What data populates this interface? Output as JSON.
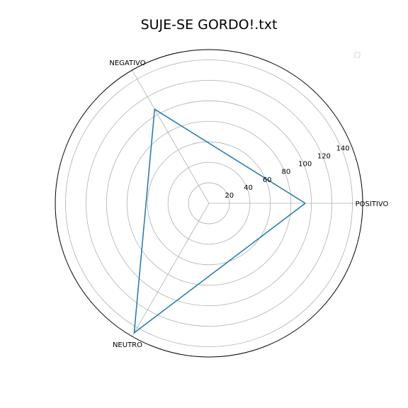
{
  "chart_data": {
    "type": "radar",
    "title": "SUJE-SE GORDO!.txt",
    "categories": [
      "POSITIVO",
      "NEGATIVO",
      "NEUTRO"
    ],
    "series": [
      {
        "values": [
          94,
          106,
          146
        ],
        "color": "#1f77b4"
      }
    ],
    "radial_ticks": [
      "20",
      "40",
      "60",
      "80",
      "100",
      "120",
      "140"
    ],
    "radial_tick_values": [
      20,
      40,
      60,
      80,
      100,
      120,
      140
    ],
    "rlim": [
      0,
      150
    ],
    "grid": true,
    "legend": "top-right, empty"
  }
}
